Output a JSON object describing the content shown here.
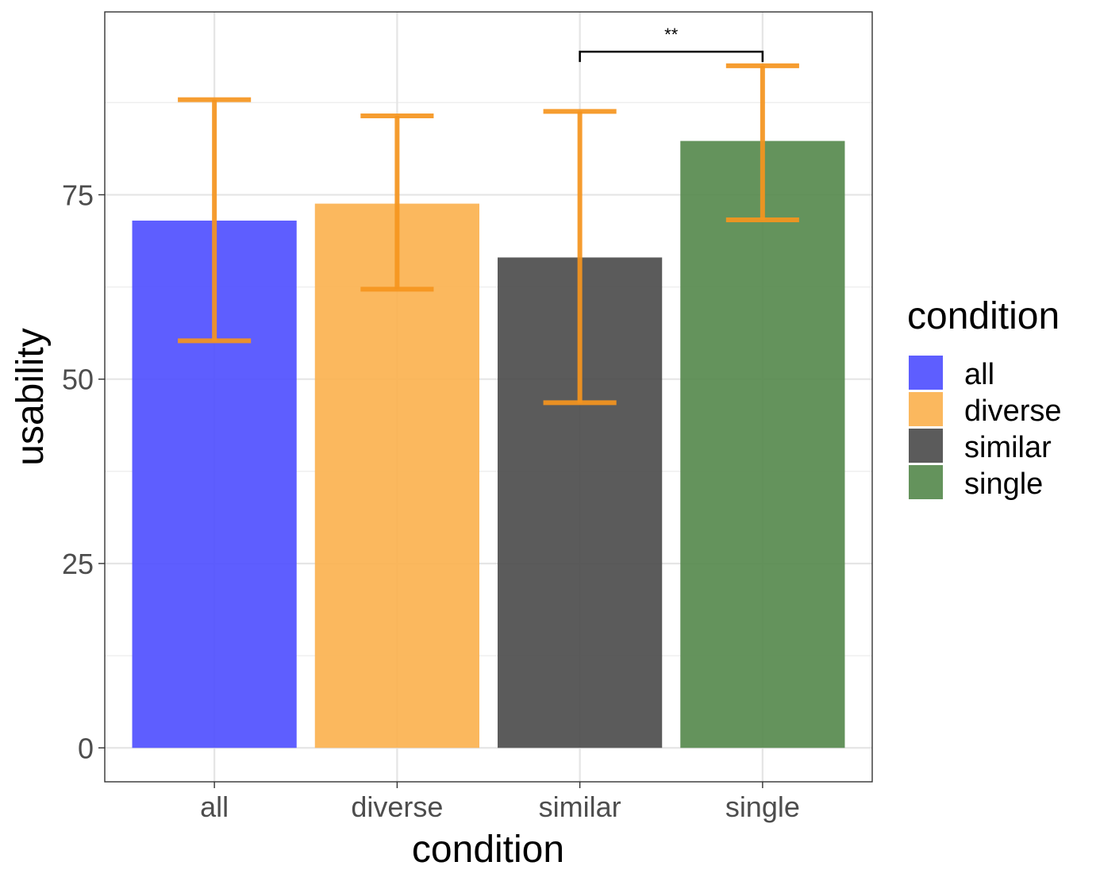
{
  "chart_data": {
    "type": "bar",
    "title": "",
    "xlabel": "condition",
    "ylabel": "usability",
    "categories": [
      "all",
      "diverse",
      "similar",
      "single"
    ],
    "values": [
      71.5,
      73.8,
      66.5,
      82.3
    ],
    "error_bars": {
      "lower": [
        55.2,
        62.2,
        46.8,
        71.6
      ],
      "upper": [
        87.9,
        85.7,
        86.3,
        92.5
      ]
    },
    "colors": [
      "#5050ff",
      "#fbb250",
      "#4d4d4d",
      "#578a4e"
    ],
    "error_bar_color": "#f5951e",
    "ylim": [
      -4.6,
      99.8
    ],
    "yticks": [
      0,
      25,
      50,
      75
    ],
    "ytick_labels": [
      "0",
      "25",
      "50",
      "75"
    ],
    "grid": true,
    "legend": {
      "title": "condition",
      "position": "right",
      "entries": [
        "all",
        "diverse",
        "similar",
        "single"
      ]
    },
    "annotations": [
      {
        "type": "significance",
        "from": "similar",
        "to": "single",
        "y": 94.4,
        "label": "**"
      }
    ]
  }
}
